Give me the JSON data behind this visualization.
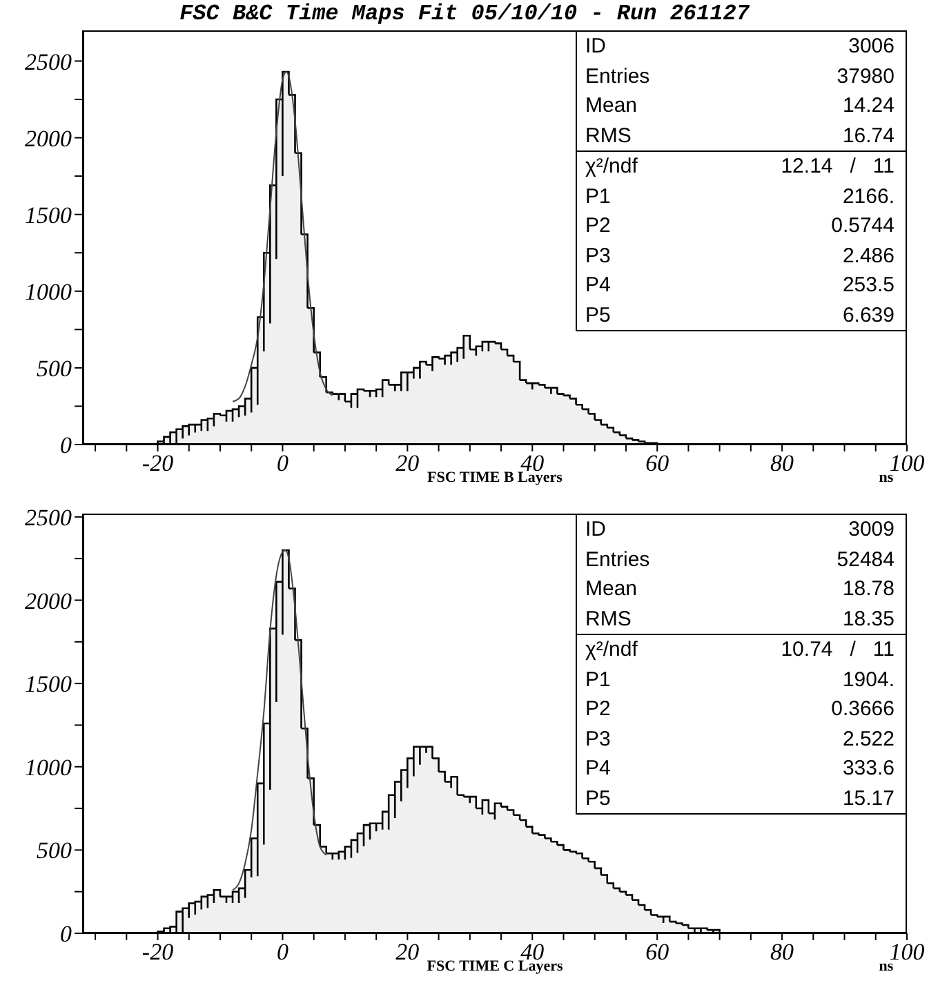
{
  "chart_data": [
    {
      "type": "histogram",
      "title": "FSC B&C Time Maps Fit 05/10/10 - Run 261127",
      "xlabel": "FSC TIME B Layers",
      "annotations": [
        "ns",
        "ID",
        "3006",
        "Entries",
        "37980",
        "Mean",
        "14.24",
        "RMS",
        "16.74",
        "χ²/ndf",
        "12.14   /   11",
        "P1",
        "2166.",
        "P2",
        "0.5744",
        "P3",
        "2.486",
        "P4",
        "253.5",
        "P5",
        "6.639"
      ],
      "series": [
        {
          "type": "histogram",
          "color": "#000000",
          "bins": [
            -20,
            -19,
            -18,
            -17,
            -16,
            -15,
            -14,
            -13,
            -12,
            -11,
            -10,
            -9,
            -8,
            -7,
            -6,
            -5,
            -4,
            -3,
            -2,
            -1,
            0,
            1,
            2,
            3,
            4,
            5,
            6,
            7,
            8,
            9,
            10,
            11,
            12,
            13,
            14,
            15,
            16,
            17,
            18,
            19,
            20,
            21,
            22,
            23,
            24,
            25,
            26,
            27,
            28,
            29,
            30,
            31,
            32,
            33,
            34,
            35,
            36,
            37,
            38,
            39,
            40,
            41,
            42,
            43,
            44,
            45,
            46,
            47,
            48,
            49,
            50,
            51,
            52,
            53,
            54,
            55,
            56,
            57,
            58,
            59,
            60
          ],
          "values": [
            20,
            50,
            80,
            100,
            120,
            130,
            130,
            160,
            170,
            200,
            190,
            220,
            230,
            250,
            300,
            500,
            830,
            1250,
            1690,
            2250,
            2430,
            2280,
            1900,
            1370,
            890,
            600,
            440,
            340,
            330,
            330,
            280,
            330,
            360,
            350,
            350,
            360,
            420,
            390,
            390,
            470,
            470,
            500,
            540,
            520,
            570,
            560,
            580,
            600,
            630,
            710,
            620,
            640,
            670,
            670,
            660,
            620,
            580,
            540,
            420,
            400,
            400,
            390,
            370,
            370,
            330,
            320,
            300,
            260,
            230,
            200,
            160,
            130,
            110,
            80,
            60,
            40,
            30,
            20,
            10,
            10
          ]
        },
        {
          "type": "line",
          "color": "#444444",
          "x": [
            -8,
            -7,
            -6,
            -5,
            -4,
            -3,
            -2,
            -1,
            0,
            0.6,
            1,
            2,
            3,
            4,
            5,
            6,
            7,
            8
          ],
          "values": [
            280,
            300,
            380,
            520,
            700,
            1050,
            1540,
            2040,
            2380,
            2430,
            2400,
            2110,
            1620,
            1110,
            720,
            470,
            360,
            320
          ]
        }
      ],
      "xlim": [
        -32,
        100
      ],
      "ylim": [
        0,
        2700
      ],
      "xticks": [
        {
          "value": -30,
          "label": null
        },
        {
          "value": -25,
          "label": null
        },
        -20,
        {
          "value": -15,
          "label": null
        },
        {
          "value": -10,
          "label": null
        },
        {
          "value": -5,
          "label": null
        },
        0,
        {
          "value": 5,
          "label": null
        },
        {
          "value": 10,
          "label": null
        },
        {
          "value": 15,
          "label": null
        },
        20,
        {
          "value": 25,
          "label": null
        },
        {
          "value": 30,
          "label": null
        },
        {
          "value": 35,
          "label": null
        },
        40,
        {
          "value": 45,
          "label": null
        },
        {
          "value": 50,
          "label": null
        },
        {
          "value": 55,
          "label": null
        },
        60,
        {
          "value": 65,
          "label": null
        },
        {
          "value": 70,
          "label": null
        },
        {
          "value": 75,
          "label": null
        },
        80,
        {
          "value": 85,
          "label": null
        },
        {
          "value": 90,
          "label": null
        },
        {
          "value": 95,
          "label": null
        },
        100
      ],
      "yticks": [
        0,
        {
          "value": 250,
          "label": null
        },
        500,
        {
          "value": 750,
          "label": null
        },
        1000,
        {
          "value": 1250,
          "label": null
        },
        1500,
        {
          "value": 1750,
          "label": null
        },
        2000,
        {
          "value": 2250,
          "label": null
        },
        2500
      ]
    },
    {
      "type": "histogram",
      "xlabel": "FSC TIME C Layers",
      "annotations": [
        "ns",
        "ID",
        "3009",
        "Entries",
        "52484",
        "Mean",
        "18.78",
        "RMS",
        "18.35",
        "χ²/ndf",
        "10.74   /   11",
        "P1",
        "1904.",
        "P2",
        "0.3666",
        "P3",
        "2.522",
        "P4",
        "333.6",
        "P5",
        "15.17"
      ],
      "series": [
        {
          "type": "histogram",
          "color": "#000000",
          "bins": [
            -20,
            -19,
            -18,
            -17,
            -16,
            -15,
            -14,
            -13,
            -12,
            -11,
            -10,
            -9,
            -8,
            -7,
            -6,
            -5,
            -4,
            -3,
            -2,
            -1,
            0,
            1,
            2,
            3,
            4,
            5,
            6,
            7,
            8,
            9,
            10,
            11,
            12,
            13,
            14,
            15,
            16,
            17,
            18,
            19,
            20,
            21,
            22,
            23,
            24,
            25,
            26,
            27,
            28,
            29,
            30,
            31,
            32,
            33,
            34,
            35,
            36,
            37,
            38,
            39,
            40,
            41,
            42,
            43,
            44,
            45,
            46,
            47,
            48,
            49,
            50,
            51,
            52,
            53,
            54,
            55,
            56,
            57,
            58,
            59,
            60,
            61,
            62,
            63,
            64,
            65,
            66,
            67,
            68,
            69,
            70
          ],
          "values": [
            10,
            30,
            40,
            130,
            150,
            180,
            190,
            220,
            230,
            260,
            220,
            220,
            250,
            270,
            380,
            570,
            900,
            1260,
            1830,
            2110,
            2300,
            2070,
            1760,
            1230,
            930,
            650,
            520,
            480,
            480,
            490,
            520,
            560,
            600,
            650,
            660,
            660,
            730,
            830,
            910,
            980,
            1050,
            1120,
            1120,
            1120,
            1050,
            970,
            910,
            940,
            830,
            820,
            820,
            750,
            800,
            720,
            780,
            760,
            740,
            710,
            680,
            640,
            600,
            590,
            570,
            550,
            530,
            500,
            490,
            480,
            450,
            430,
            390,
            350,
            300,
            270,
            250,
            230,
            200,
            170,
            140,
            110,
            100,
            100,
            70,
            60,
            50,
            30,
            30,
            30,
            20,
            20
          ]
        },
        {
          "type": "line",
          "color": "#444444",
          "x": [
            -8,
            -7,
            -6,
            -5,
            -4,
            -3,
            -2,
            -1,
            0,
            0.4,
            1,
            2,
            3,
            4,
            5,
            6,
            7
          ],
          "values": [
            260,
            300,
            420,
            620,
            960,
            1330,
            1820,
            2150,
            2290,
            2300,
            2250,
            1950,
            1520,
            1070,
            720,
            520,
            470
          ]
        }
      ],
      "xlim": [
        -32,
        100
      ],
      "ylim": [
        0,
        2520
      ],
      "xticks": [
        {
          "value": -30,
          "label": null
        },
        {
          "value": -25,
          "label": null
        },
        -20,
        {
          "value": -15,
          "label": null
        },
        {
          "value": -10,
          "label": null
        },
        {
          "value": -5,
          "label": null
        },
        0,
        {
          "value": 5,
          "label": null
        },
        {
          "value": 10,
          "label": null
        },
        {
          "value": 15,
          "label": null
        },
        20,
        {
          "value": 25,
          "label": null
        },
        {
          "value": 30,
          "label": null
        },
        {
          "value": 35,
          "label": null
        },
        40,
        {
          "value": 45,
          "label": null
        },
        {
          "value": 50,
          "label": null
        },
        {
          "value": 55,
          "label": null
        },
        60,
        {
          "value": 65,
          "label": null
        },
        {
          "value": 70,
          "label": null
        },
        {
          "value": 75,
          "label": null
        },
        80,
        {
          "value": 85,
          "label": null
        },
        {
          "value": 90,
          "label": null
        },
        {
          "value": 95,
          "label": null
        },
        100
      ],
      "yticks": [
        0,
        {
          "value": 250,
          "label": null
        },
        500,
        {
          "value": 750,
          "label": null
        },
        1000,
        {
          "value": 1250,
          "label": null
        },
        1500,
        {
          "value": 1750,
          "label": null
        },
        2000,
        {
          "value": 2250,
          "label": null
        },
        2500
      ]
    }
  ]
}
